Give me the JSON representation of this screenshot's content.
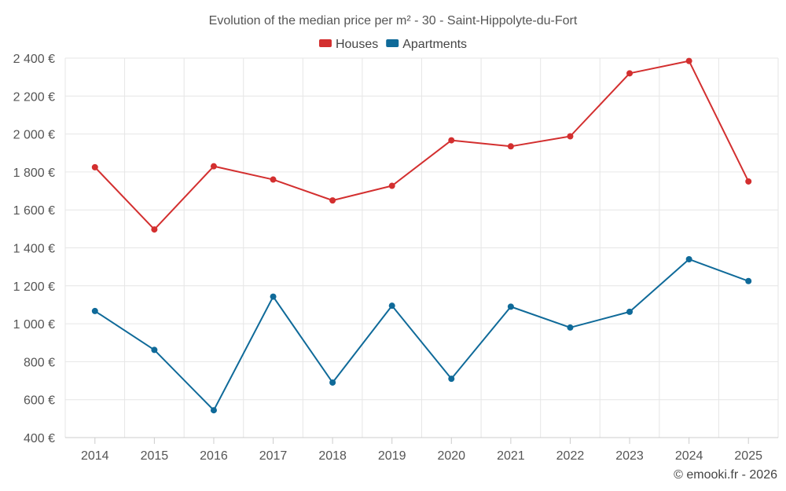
{
  "chart_data": {
    "type": "line",
    "title": "Evolution of the median price per m² - 30 - Saint-Hippolyte-du-Fort",
    "xlabel": "",
    "ylabel": "",
    "categories": [
      "2014",
      "2015",
      "2016",
      "2017",
      "2018",
      "2019",
      "2020",
      "2021",
      "2022",
      "2023",
      "2024",
      "2025"
    ],
    "ylim": [
      400,
      2400
    ],
    "yticks": [
      400,
      600,
      800,
      1000,
      1200,
      1400,
      1600,
      1800,
      2000,
      2200,
      2400
    ],
    "ytick_labels": [
      "400 €",
      "600 €",
      "800 €",
      "1 000 €",
      "1 200 €",
      "1 400 €",
      "1 600 €",
      "1 800 €",
      "2 000 €",
      "2 200 €",
      "2 400 €"
    ],
    "grid": true,
    "legend_position": "top-center",
    "series": [
      {
        "name": "Houses",
        "color": "#d32f2f",
        "values": [
          1825,
          1497,
          1830,
          1760,
          1650,
          1727,
          1967,
          1935,
          1988,
          2320,
          2385,
          1750
        ]
      },
      {
        "name": "Apartments",
        "color": "#0f6a99",
        "values": [
          1067,
          862,
          544,
          1143,
          690,
          1095,
          710,
          1090,
          980,
          1063,
          1340,
          1225
        ]
      }
    ]
  },
  "credit": "© emooki.fr - 2026"
}
